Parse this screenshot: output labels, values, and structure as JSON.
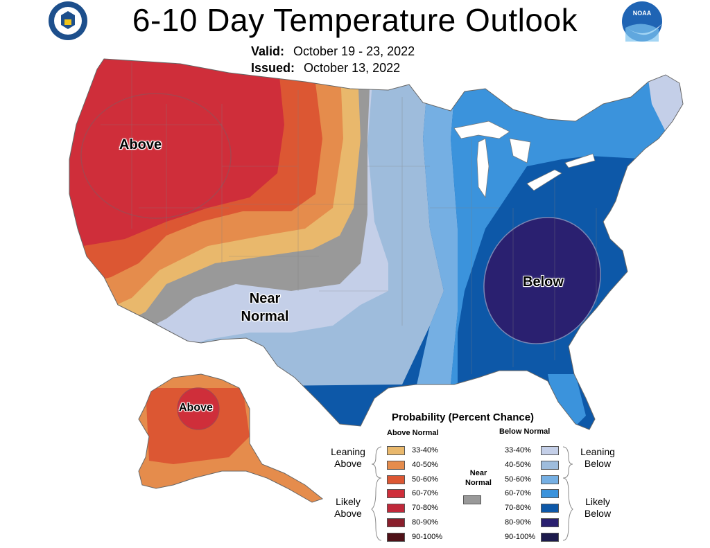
{
  "title": "6-10 Day Temperature Outlook",
  "valid_label": "Valid:",
  "valid_value": "October 19 - 23, 2022",
  "issued_label": "Issued:",
  "issued_value": "October 13, 2022",
  "logos": {
    "left": "department-of-commerce-seal",
    "right": "noaa-logo"
  },
  "map_labels": {
    "west": "Above",
    "southwest": "Near Normal",
    "southeast": "Below",
    "alaska": "Above"
  },
  "legend": {
    "title": "Probability (Percent Chance)",
    "above_head": "Above Normal",
    "below_head": "Below Normal",
    "near_head": "Near Normal",
    "above": [
      {
        "label": "33-40%",
        "color": "#e9b86c"
      },
      {
        "label": "40-50%",
        "color": "#e58c4c"
      },
      {
        "label": "50-60%",
        "color": "#dc5733"
      },
      {
        "label": "60-70%",
        "color": "#cf2e3a"
      },
      {
        "label": "70-80%",
        "color": "#c0283a"
      },
      {
        "label": "80-90%",
        "color": "#8a1f2c"
      },
      {
        "label": "90-100%",
        "color": "#4f1118"
      }
    ],
    "below": [
      {
        "label": "33-40%",
        "color": "#c4cfe8"
      },
      {
        "label": "40-50%",
        "color": "#9ebcdc"
      },
      {
        "label": "50-60%",
        "color": "#75afe3"
      },
      {
        "label": "60-70%",
        "color": "#3b93dc"
      },
      {
        "label": "70-80%",
        "color": "#0d58a8"
      },
      {
        "label": "80-90%",
        "color": "#2a2070"
      },
      {
        "label": "90-100%",
        "color": "#1c1a4c"
      }
    ],
    "near_color": "#999999",
    "groups": {
      "leaning_above": "Leaning Above",
      "likely_above": "Likely Above",
      "leaning_below": "Leaning Below",
      "likely_below": "Likely Below"
    }
  }
}
